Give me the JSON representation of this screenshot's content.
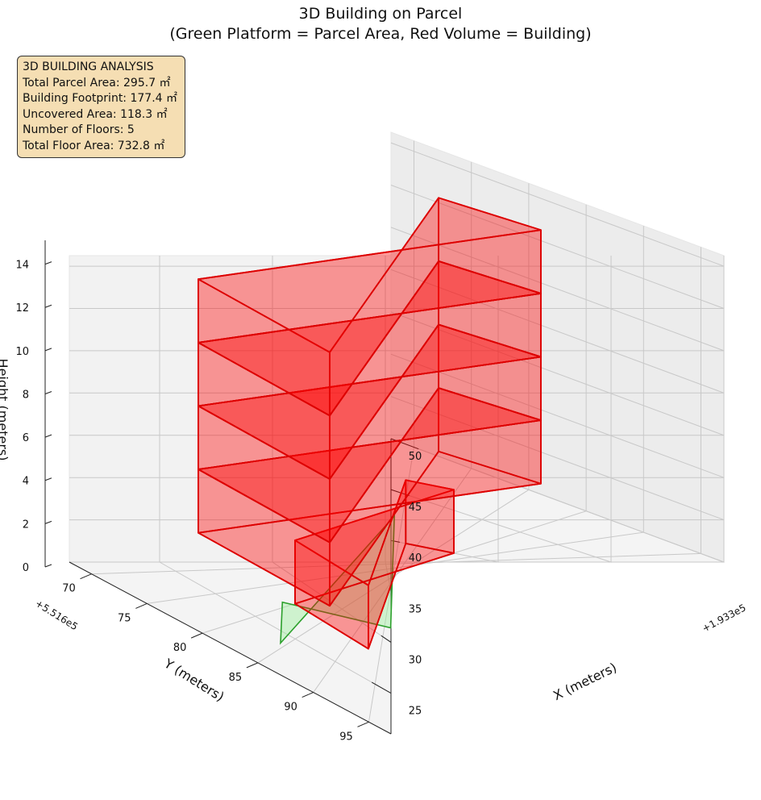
{
  "chart_data": {
    "type": "3d-bar",
    "title": "3D Building on Parcel",
    "subtitle": "(Green Platform = Parcel Area, Red Volume = Building)",
    "xlabel": "X (meters)",
    "ylabel": "Y (meters)",
    "zlabel": "Height (meters)",
    "x_offset_label": "+1.933e5",
    "y_offset_label": "+5.516e5",
    "x_ticks": [
      "25",
      "30",
      "35",
      "40",
      "45",
      "50"
    ],
    "y_ticks": [
      "70",
      "75",
      "80",
      "85",
      "90",
      "95"
    ],
    "z_ticks": [
      "0",
      "2",
      "4",
      "6",
      "8",
      "10",
      "12",
      "14"
    ],
    "xlim": [
      21,
      50
    ],
    "ylim": [
      68,
      97
    ],
    "zlim": [
      0,
      14.5
    ],
    "grid": true,
    "parcel": {
      "name": "Parcel Area",
      "color": "#2ca02c",
      "fill": "#90ee90",
      "polygon": [
        [
          23.9,
          84.5
        ],
        [
          42.5,
          96.4
        ],
        [
          31.4,
          96.9
        ],
        [
          27.5,
          79.0
        ]
      ]
    },
    "building": {
      "name": "Building",
      "color": "#ff0000",
      "edge": "#dd0000",
      "floors": [
        {
          "x": [
            28.0,
            40.0
          ],
          "y": [
            80.0,
            93.0
          ],
          "z": [
            0,
            3
          ]
        },
        {
          "x": [
            24.0,
            44.0
          ],
          "y": [
            75.0,
            90.0
          ],
          "z": [
            3,
            6
          ]
        },
        {
          "x": [
            24.0,
            44.0
          ],
          "y": [
            75.0,
            90.0
          ],
          "z": [
            6,
            9
          ]
        },
        {
          "x": [
            24.0,
            44.0
          ],
          "y": [
            75.0,
            90.0
          ],
          "z": [
            9,
            12
          ]
        },
        {
          "x": [
            24.0,
            44.0
          ],
          "y": [
            75.0,
            90.0
          ],
          "z": [
            12,
            15
          ]
        }
      ]
    },
    "info": {
      "title": "3D BUILDING ANALYSIS",
      "lines": [
        "Total Parcel Area: 295.7 ㎡",
        "Building Footprint: 177.4 ㎡",
        "Uncovered Area: 118.3 ㎡",
        "Number of Floors: 5",
        "Total Floor Area: 732.8 ㎡"
      ]
    }
  }
}
